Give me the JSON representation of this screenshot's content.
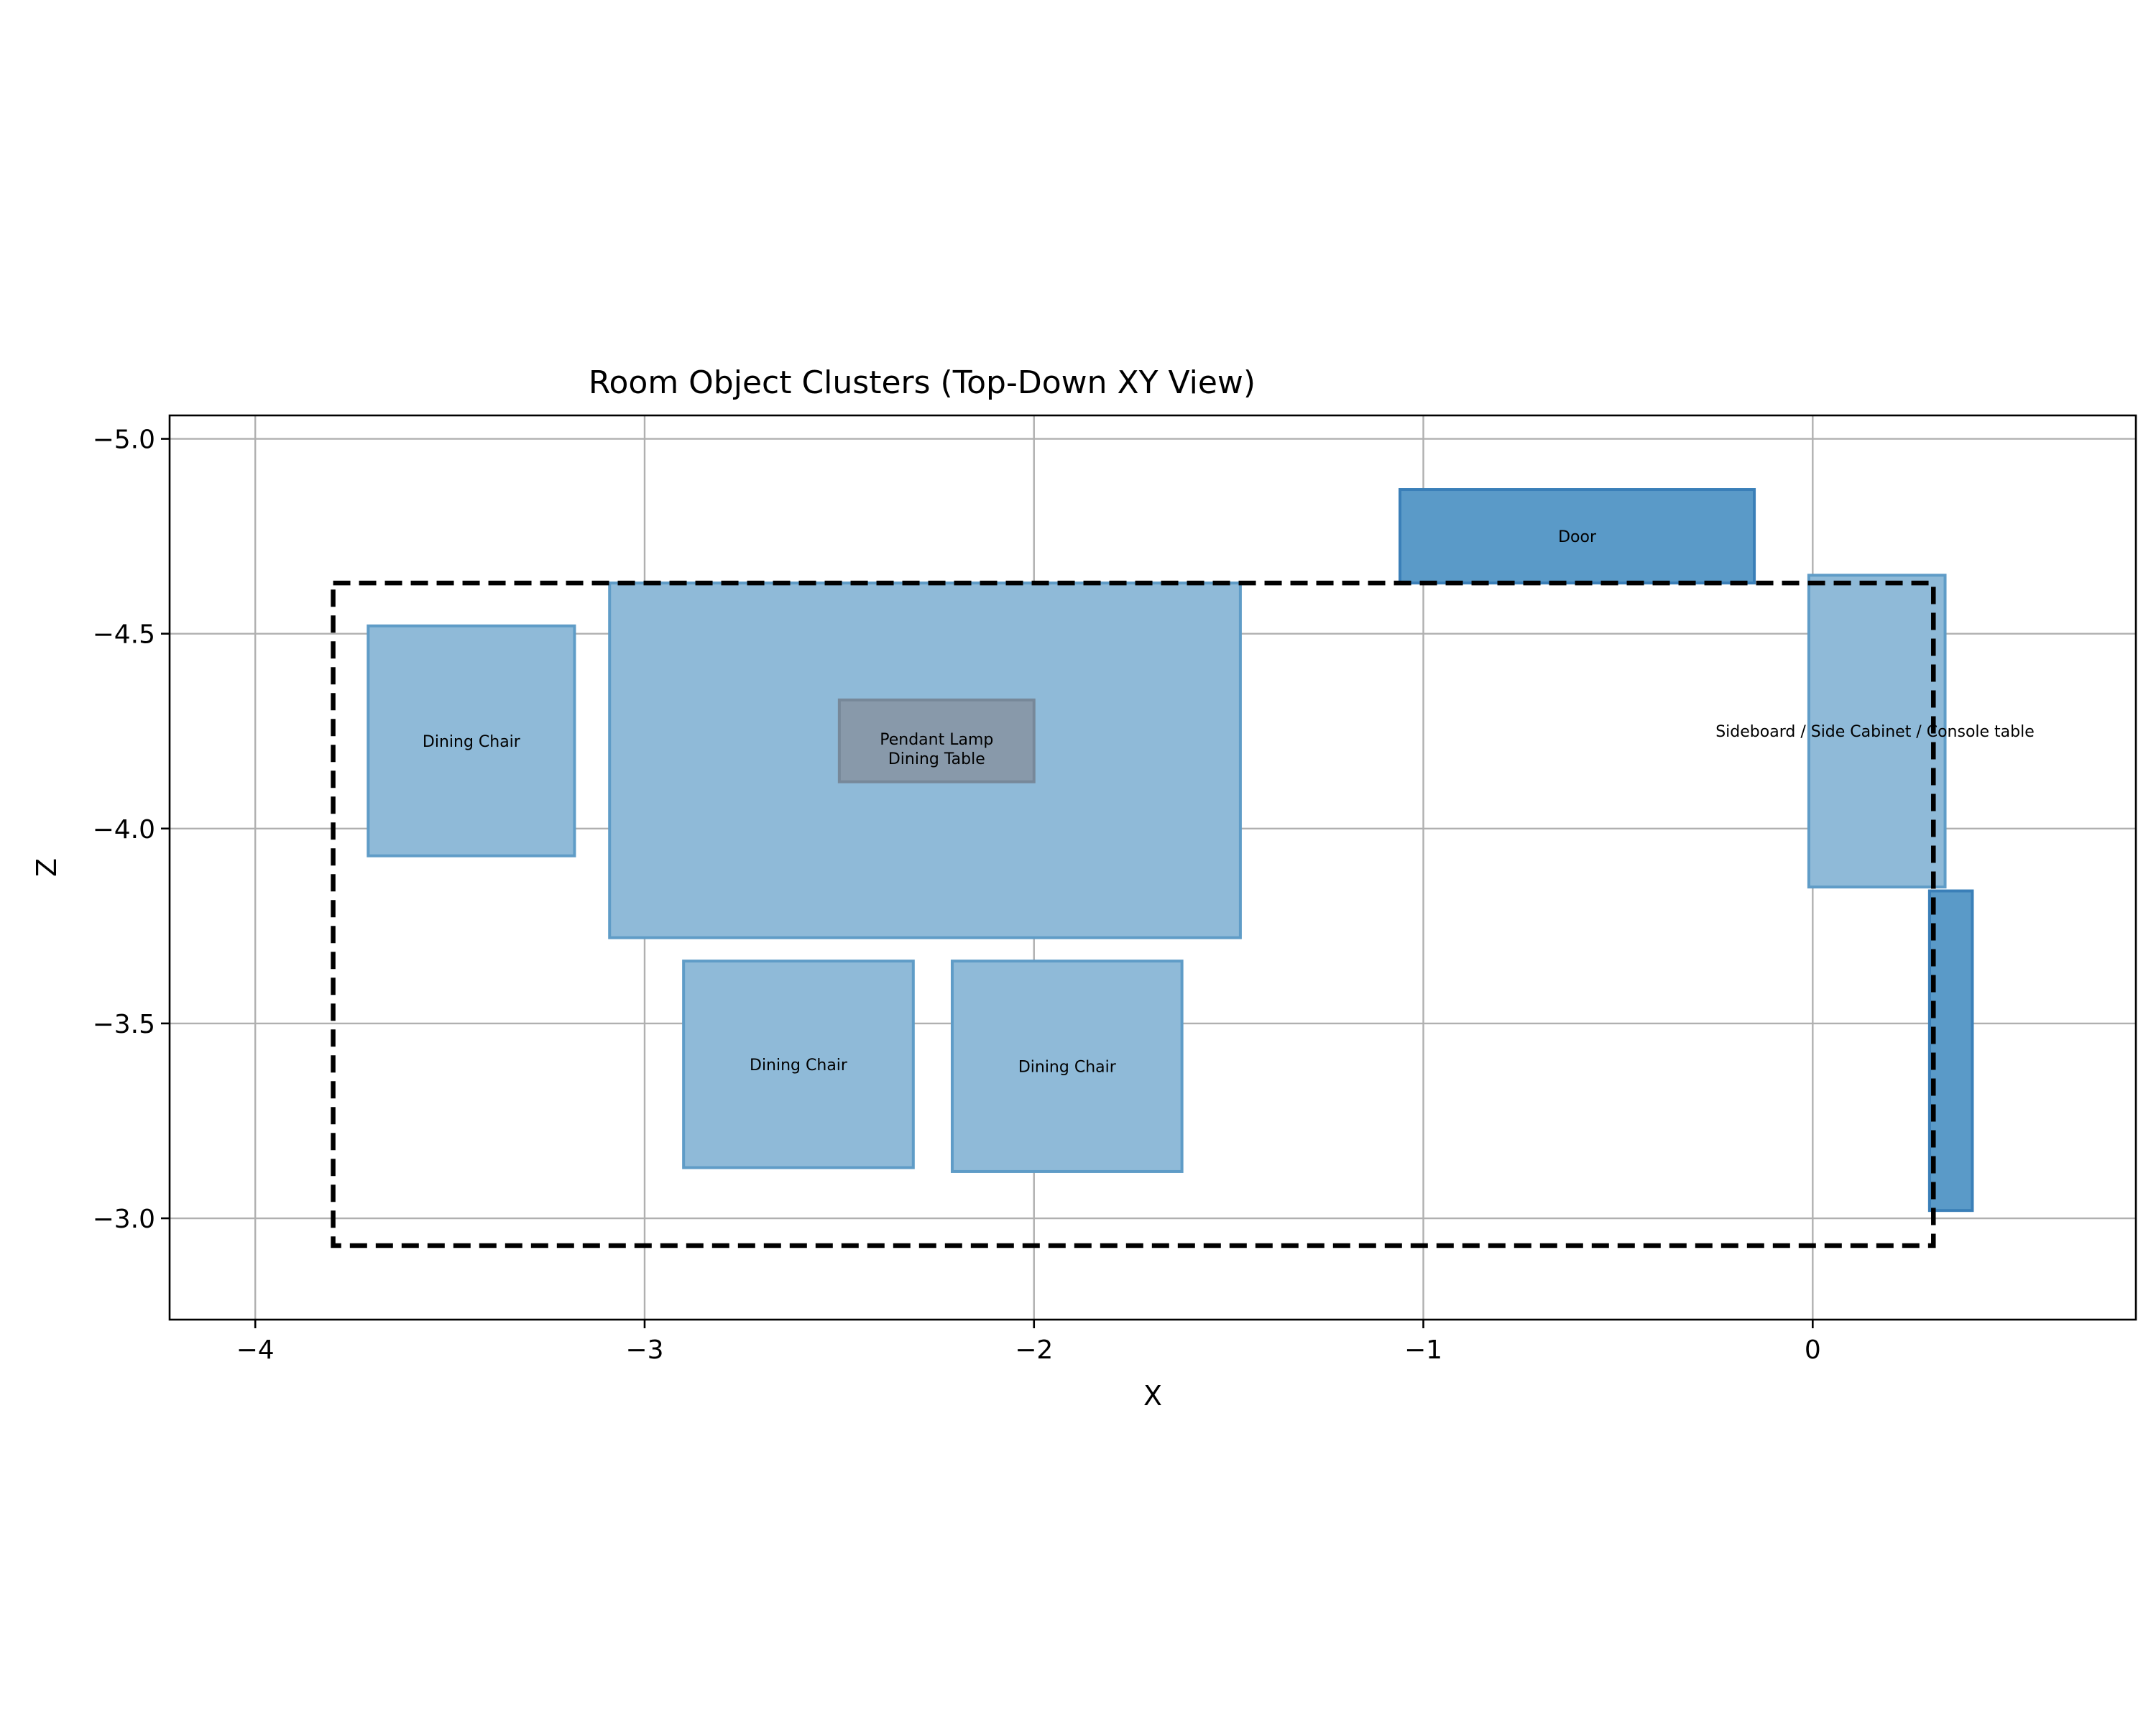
{
  "chart_data": {
    "type": "rectangles",
    "title": "Room Object Clusters (Top-Down XY View)",
    "xlabel": "X",
    "ylabel": "Z",
    "xlim": [
      -4.22,
      0.83
    ],
    "ylim": [
      -2.74,
      -5.06
    ],
    "y_inverted": true,
    "grid": true,
    "xticks": [
      -4,
      -3,
      -2,
      -1,
      0
    ],
    "yticks": [
      -5.0,
      -4.5,
      -4.0,
      -3.5,
      -3.0
    ],
    "xtick_labels": [
      "−4",
      "−3",
      "−2",
      "−1",
      "0"
    ],
    "ytick_labels": [
      "−5.0",
      "−4.5",
      "−4.0",
      "−3.5",
      "−3.0"
    ],
    "colors": {
      "light_fill": "#8fbad8",
      "light_edge": "#5f9cc7",
      "dark_fill": "#5a9ac8",
      "dark_edge": "#3a7fb8",
      "gray_fill": "#8899aa",
      "gray_edge": "#778899",
      "boundary": "#000000"
    },
    "room_boundary": {
      "x0": -3.8,
      "x1": 0.31,
      "z0": -4.63,
      "z1": -2.93,
      "style": "dashed"
    },
    "objects": [
      {
        "label": "Dining Chair",
        "x0": -3.71,
        "x1": -3.18,
        "z0": -4.52,
        "z1": -3.93,
        "style": "light"
      },
      {
        "label": "",
        "x0": -3.09,
        "x1": -1.47,
        "z0": -4.63,
        "z1": -3.72,
        "style": "light"
      },
      {
        "label": "Pendant Lamp",
        "x0": -2.5,
        "x1": -2.0,
        "z0": -4.33,
        "z1": -4.12,
        "style": "gray",
        "label_z": -4.23
      },
      {
        "label": "Dining Table",
        "x0": -2.5,
        "x1": -2.0,
        "z0": -4.33,
        "z1": -4.12,
        "style": "none",
        "label_z": -4.18
      },
      {
        "label": "Dining Chair",
        "x0": -2.9,
        "x1": -2.31,
        "z0": -3.66,
        "z1": -3.13,
        "style": "light"
      },
      {
        "label": "Dining Chair",
        "x0": -2.21,
        "x1": -1.62,
        "z0": -3.66,
        "z1": -3.12,
        "style": "light"
      },
      {
        "label": "Door",
        "x0": -1.06,
        "x1": -0.15,
        "z0": -4.87,
        "z1": -4.63,
        "style": "dark"
      },
      {
        "label": "Sideboard / Side Cabinet / Console table",
        "x0": -0.01,
        "x1": 0.34,
        "z0": -4.65,
        "z1": -3.85,
        "style": "light",
        "label_x": 0.16,
        "label_z": -4.25
      },
      {
        "label": "",
        "x0": 0.3,
        "x1": 0.41,
        "z0": -3.84,
        "z1": -3.02,
        "style": "dark"
      }
    ]
  }
}
